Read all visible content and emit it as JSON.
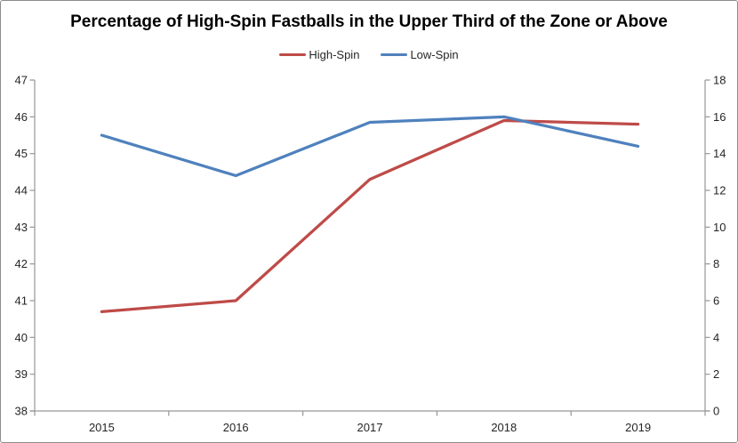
{
  "window": {
    "background": "#ffffff",
    "border_color": "#8c8c8c"
  },
  "chart_data": {
    "type": "line",
    "title": "Percentage of High-Spin Fastballs in the Upper Third of the Zone or Above",
    "categories": [
      "2015",
      "2016",
      "2017",
      "2018",
      "2019"
    ],
    "series": [
      {
        "name": "High-Spin",
        "color": "#BE4B48",
        "axis": "left",
        "values": [
          40.7,
          41.0,
          44.3,
          45.9,
          45.8
        ]
      },
      {
        "name": "Low-Spin",
        "color": "#4F81BD",
        "axis": "right",
        "values": [
          15.0,
          12.8,
          15.7,
          16.0,
          14.4
        ]
      }
    ],
    "left_axis": {
      "min": 38,
      "max": 47,
      "tick_step": 1,
      "ticks": [
        "47",
        "46",
        "45",
        "44",
        "43",
        "42",
        "41",
        "40",
        "39",
        "38"
      ]
    },
    "right_axis": {
      "min": 0,
      "max": 18,
      "tick_step": 2,
      "ticks": [
        "18",
        "16",
        "14",
        "12",
        "10",
        "8",
        "6",
        "4",
        "2",
        "0"
      ]
    },
    "xlabel": "",
    "ylabel": "",
    "grid": false,
    "legend_position": "top-center",
    "axis_color": "#969696",
    "label_color": "#262626",
    "tick_label_font_px": 13
  }
}
